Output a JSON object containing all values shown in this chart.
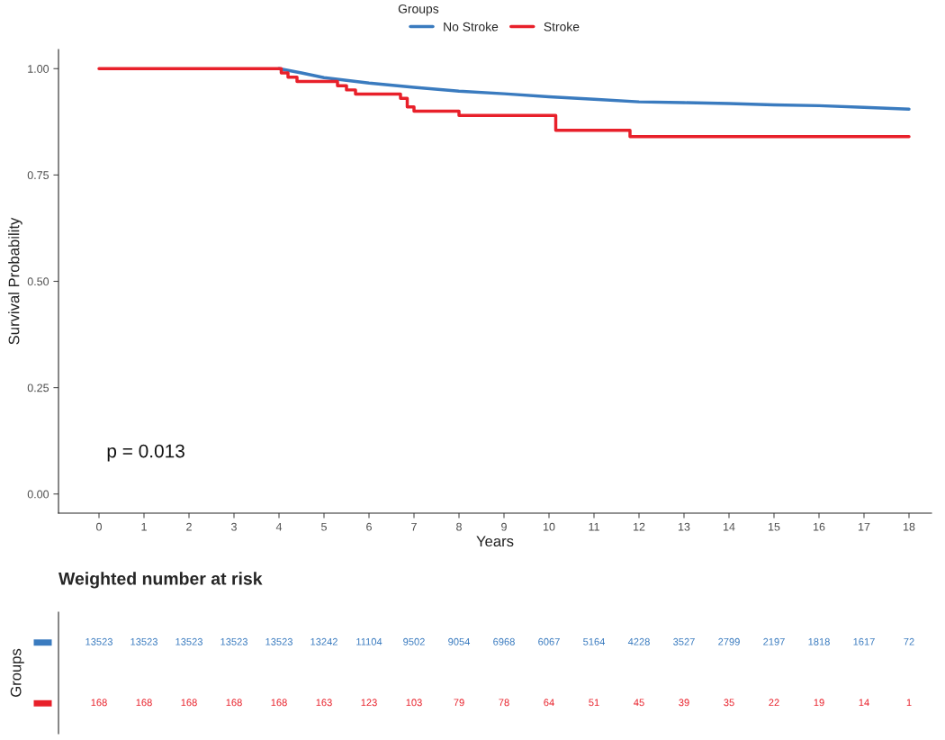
{
  "chart_data": [
    {
      "type": "line",
      "xlabel": "Years",
      "ylabel": "Survival Probability",
      "legend_title": "Groups",
      "legend": "top",
      "xlim": [
        -0.9,
        18.5
      ],
      "ylim": [
        -0.045,
        1.045
      ],
      "xticks": [
        0,
        1,
        2,
        3,
        4,
        5,
        6,
        7,
        8,
        9,
        10,
        11,
        12,
        13,
        14,
        15,
        16,
        17,
        18
      ],
      "yticks": [
        {
          "value": 0,
          "label": "0.00"
        },
        {
          "value": 0.25,
          "label": "0.25"
        },
        {
          "value": 0.5,
          "label": "0.50"
        },
        {
          "value": 0.75,
          "label": "0.75"
        },
        {
          "value": 1,
          "label": "1.00"
        }
      ],
      "grid": false,
      "annotations": [
        "p = 0.013"
      ],
      "series": [
        {
          "name": "No Stroke",
          "color": "#3a7bbf",
          "type": "line",
          "x": [
            4,
            4.5,
            5,
            6,
            7,
            8,
            9,
            10,
            11,
            12,
            13,
            14,
            15,
            16,
            17,
            18
          ],
          "values": [
            1,
            0.99,
            0.979,
            0.966,
            0.956,
            0.947,
            0.941,
            0.934,
            0.928,
            0.922,
            0.92,
            0.918,
            0.915,
            0.913,
            0.909,
            0.905
          ]
        },
        {
          "name": "Stroke",
          "color": "#e8202a",
          "type": "step",
          "x": [
            0,
            4.05,
            4.2,
            4.4,
            5.3,
            5.5,
            5.7,
            6.7,
            6.85,
            7.0,
            8.0,
            10.15,
            11.8,
            18
          ],
          "values": [
            1,
            0.99,
            0.98,
            0.97,
            0.96,
            0.95,
            0.94,
            0.93,
            0.91,
            0.9,
            0.89,
            0.855,
            0.84,
            0.84
          ]
        }
      ]
    },
    {
      "type": "heatmap",
      "title": "Weighted number at risk",
      "ylabel": "Groups",
      "data_labels": true,
      "categories": [
        null,
        null,
        null,
        null,
        null,
        null,
        null,
        null,
        null,
        null,
        null,
        null,
        null,
        null,
        null,
        null,
        null,
        null,
        null
      ],
      "y_categories": [
        null,
        null
      ],
      "colors": [
        "#3a7bbf",
        "#e8202a"
      ],
      "cells": [
        [
          13523,
          13523,
          13523,
          13523,
          13523,
          13242,
          11104,
          9502,
          9054,
          6968,
          6067,
          5164,
          4228,
          3527,
          2799,
          2197,
          1818,
          1617,
          72
        ],
        [
          168,
          168,
          168,
          168,
          168,
          163,
          123,
          103,
          79,
          78,
          64,
          51,
          45,
          39,
          35,
          22,
          19,
          14,
          1
        ]
      ]
    }
  ]
}
